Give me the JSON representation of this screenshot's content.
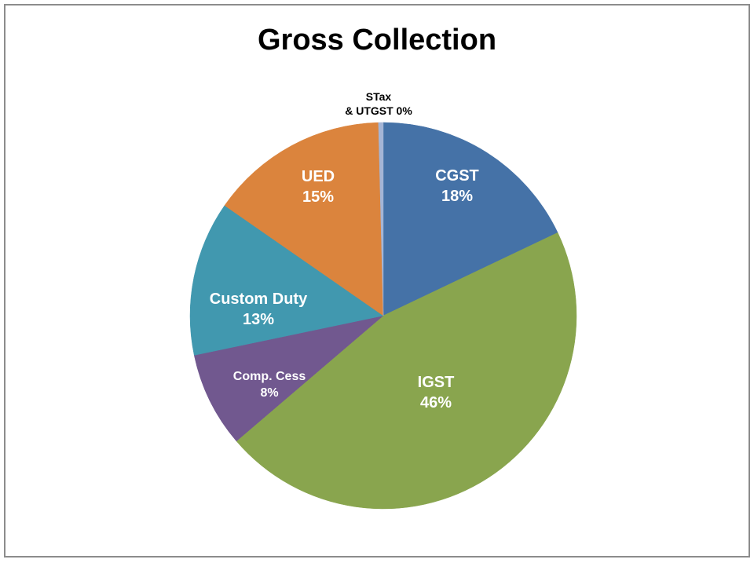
{
  "chart_data": {
    "type": "pie",
    "title": "Gross Collection",
    "slices": [
      {
        "name": "CGST",
        "value": 18,
        "label_line1": "CGST",
        "label_line2": "18%",
        "color": "#4572a7",
        "label_color": "#ffffff"
      },
      {
        "name": "IGST",
        "value": 46,
        "label_line1": "IGST",
        "label_line2": "46%",
        "color": "#89a54e",
        "label_color": "#ffffff"
      },
      {
        "name": "Comp. Cess",
        "value": 8,
        "label_line1": "Comp. Cess",
        "label_line2": "8%",
        "color": "#71588f",
        "label_color": "#ffffff"
      },
      {
        "name": "Custom Duty",
        "value": 13,
        "label_line1": "Custom Duty",
        "label_line2": "13%",
        "color": "#4198af",
        "label_color": "#ffffff"
      },
      {
        "name": "UED",
        "value": 15,
        "label_line1": "UED",
        "label_line2": "15%",
        "color": "#db843d",
        "label_color": "#ffffff"
      },
      {
        "name": "STax & UTGST",
        "value": 0.4,
        "label_line1": "STax",
        "label_line2": "& UTGST 0%",
        "color": "#a4b5d6",
        "label_color": "#000000"
      }
    ]
  }
}
